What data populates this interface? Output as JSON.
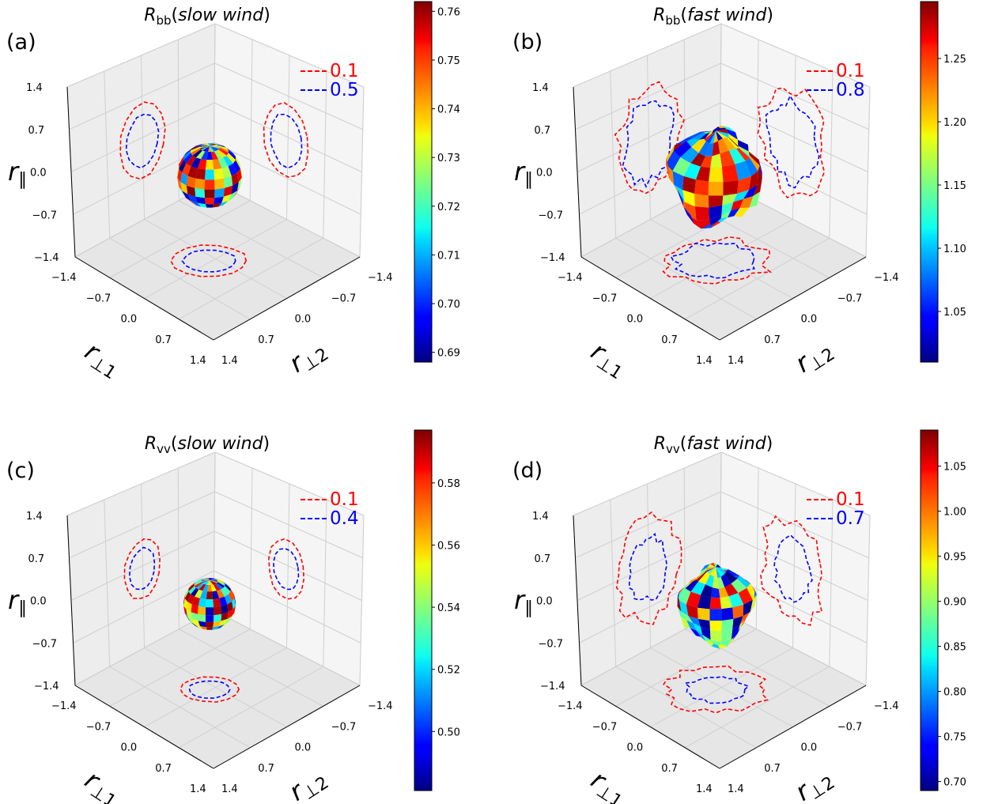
{
  "chart_data": [
    {
      "type": "scatter",
      "panel_label": "(a)",
      "title": {
        "symbol": "R",
        "sub": "bb",
        "paren_open": "(",
        "italic": "slow wind",
        "paren_close": ")"
      },
      "axes": {
        "x_label": {
          "main": "r",
          "sub": "⊥1"
        },
        "y_label": {
          "main": "r",
          "sub": "⊥2"
        },
        "z_label": {
          "main": "r",
          "sub": "∥"
        },
        "ticks": [
          "−1.4",
          "−0.7",
          "0.0",
          "0.7",
          "1.4"
        ],
        "range": [
          -1.4,
          1.4
        ],
        "grid": true
      },
      "legend": [
        {
          "label": "0.1",
          "color": "#ff0000",
          "style": "dashed"
        },
        {
          "label": "0.5",
          "color": "#0000ff",
          "style": "dashed"
        }
      ],
      "colorbar": {
        "colormap": "jet",
        "min": 0.688,
        "max": 0.762,
        "ticks": [
          "0.69",
          "0.70",
          "0.71",
          "0.72",
          "0.73",
          "0.74",
          "0.75",
          "0.76"
        ],
        "tick_values": [
          0.69,
          0.7,
          0.71,
          0.72,
          0.73,
          0.74,
          0.75,
          0.76
        ]
      },
      "sphere": {
        "radius": 0.72,
        "shape": "round"
      },
      "contours": {
        "outer_radius": 0.9,
        "inner_radius": 0.64,
        "irregular": false
      }
    },
    {
      "type": "scatter",
      "panel_label": "(b)",
      "title": {
        "symbol": "R",
        "sub": "bb",
        "paren_open": "(",
        "italic": "fast wind",
        "paren_close": ")"
      },
      "axes": {
        "x_label": {
          "main": "r",
          "sub": "⊥1"
        },
        "y_label": {
          "main": "r",
          "sub": "⊥2"
        },
        "z_label": {
          "main": "r",
          "sub": "∥"
        },
        "ticks": [
          "−1.4",
          "−0.7",
          "0.0",
          "0.7",
          "1.4"
        ],
        "range": [
          -1.4,
          1.4
        ],
        "grid": true
      },
      "legend": [
        {
          "label": "0.1",
          "color": "#ff0000",
          "style": "dashed"
        },
        {
          "label": "0.8",
          "color": "#0000ff",
          "style": "dashed"
        }
      ],
      "colorbar": {
        "colormap": "jet",
        "min": 1.01,
        "max": 1.295,
        "ticks": [
          "1.05",
          "1.10",
          "1.15",
          "1.20",
          "1.25"
        ],
        "tick_values": [
          1.05,
          1.1,
          1.15,
          1.2,
          1.25
        ]
      },
      "sphere": {
        "radius": 1.15,
        "shape": "irregular"
      },
      "contours": {
        "outer_radius": 1.3,
        "inner_radius": 1.0,
        "irregular": true
      }
    },
    {
      "type": "scatter",
      "panel_label": "(c)",
      "title": {
        "symbol": "R",
        "sub": "vv",
        "paren_open": "(",
        "italic": "slow wind",
        "paren_close": ")"
      },
      "axes": {
        "x_label": {
          "main": "r",
          "sub": "⊥1"
        },
        "y_label": {
          "main": "r",
          "sub": "⊥2"
        },
        "z_label": {
          "main": "r",
          "sub": "∥"
        },
        "ticks": [
          "−1.4",
          "−0.7",
          "0.0",
          "0.7",
          "1.4"
        ],
        "range": [
          -1.4,
          1.4
        ],
        "grid": true
      },
      "legend": [
        {
          "label": "0.1",
          "color": "#ff0000",
          "style": "dashed"
        },
        {
          "label": "0.4",
          "color": "#0000ff",
          "style": "dashed"
        }
      ],
      "colorbar": {
        "colormap": "jet",
        "min": 0.481,
        "max": 0.597,
        "ticks": [
          "0.50",
          "0.52",
          "0.54",
          "0.56",
          "0.58"
        ],
        "tick_values": [
          0.5,
          0.52,
          0.54,
          0.56,
          0.58
        ]
      },
      "sphere": {
        "radius": 0.58,
        "shape": "round"
      },
      "contours": {
        "outer_radius": 0.72,
        "inner_radius": 0.5,
        "irregular": false
      }
    },
    {
      "type": "scatter",
      "panel_label": "(d)",
      "title": {
        "symbol": "R",
        "sub": "vv",
        "paren_open": "(",
        "italic": "fast wind",
        "paren_close": ")"
      },
      "axes": {
        "x_label": {
          "main": "r",
          "sub": "⊥1"
        },
        "y_label": {
          "main": "r",
          "sub": "⊥2"
        },
        "z_label": {
          "main": "r",
          "sub": "∥"
        },
        "ticks": [
          "−1.4",
          "−0.7",
          "0.0",
          "0.7",
          "1.4"
        ],
        "range": [
          -1.4,
          1.4
        ],
        "grid": true
      },
      "legend": [
        {
          "label": "0.1",
          "color": "#ff0000",
          "style": "dashed"
        },
        {
          "label": "0.7",
          "color": "#0000ff",
          "style": "dashed"
        }
      ],
      "colorbar": {
        "colormap": "jet",
        "min": 0.69,
        "max": 1.09,
        "ticks": [
          "0.70",
          "0.75",
          "0.80",
          "0.85",
          "0.90",
          "0.95",
          "1.00",
          "1.05"
        ],
        "tick_values": [
          0.7,
          0.75,
          0.8,
          0.85,
          0.9,
          0.95,
          1.0,
          1.05
        ]
      },
      "sphere": {
        "radius": 0.95,
        "shape": "irregular"
      },
      "contours": {
        "outer_radius": 1.25,
        "inner_radius": 0.75,
        "irregular": true
      }
    }
  ]
}
